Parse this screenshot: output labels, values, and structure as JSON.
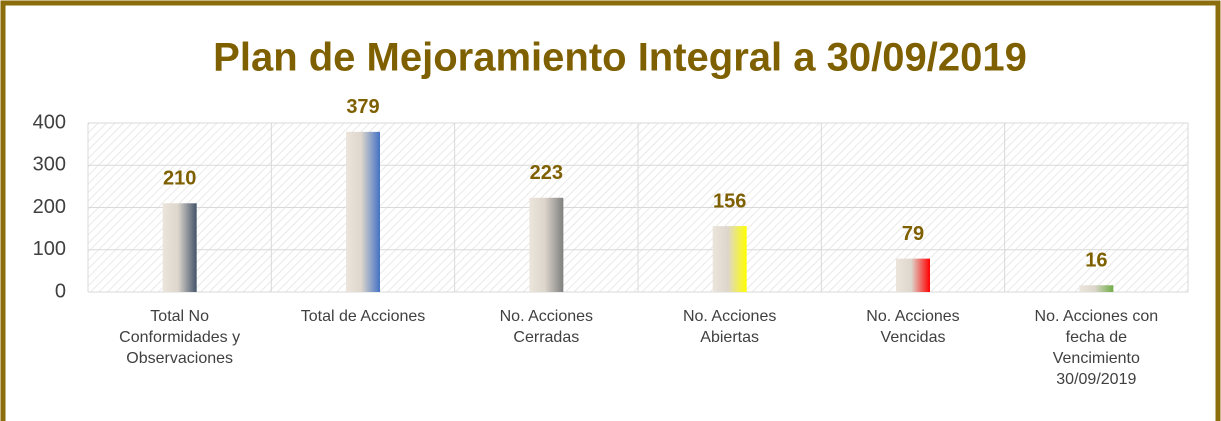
{
  "chart_data": {
    "type": "bar",
    "title": "Plan de Mejoramiento Integral a 30/09/2019",
    "categories": [
      "Total No\nConformidades y\nObservaciones",
      "Total de Acciones",
      "No. Acciones\nCerradas",
      "No. Acciones\nAbiertas",
      "No. Acciones\nVencidas",
      "No. Acciones con\nfecha de\nVencimiento\n30/09/2019"
    ],
    "values": [
      210,
      379,
      223,
      156,
      79,
      16
    ],
    "colors": [
      "#44546a",
      "#4472c4",
      "#7f7f7f",
      "#ffff00",
      "#ff0000",
      "#70ad47"
    ],
    "ylim": [
      0,
      400
    ],
    "yticks": [
      0,
      100,
      200,
      300,
      400
    ],
    "grid": true
  }
}
